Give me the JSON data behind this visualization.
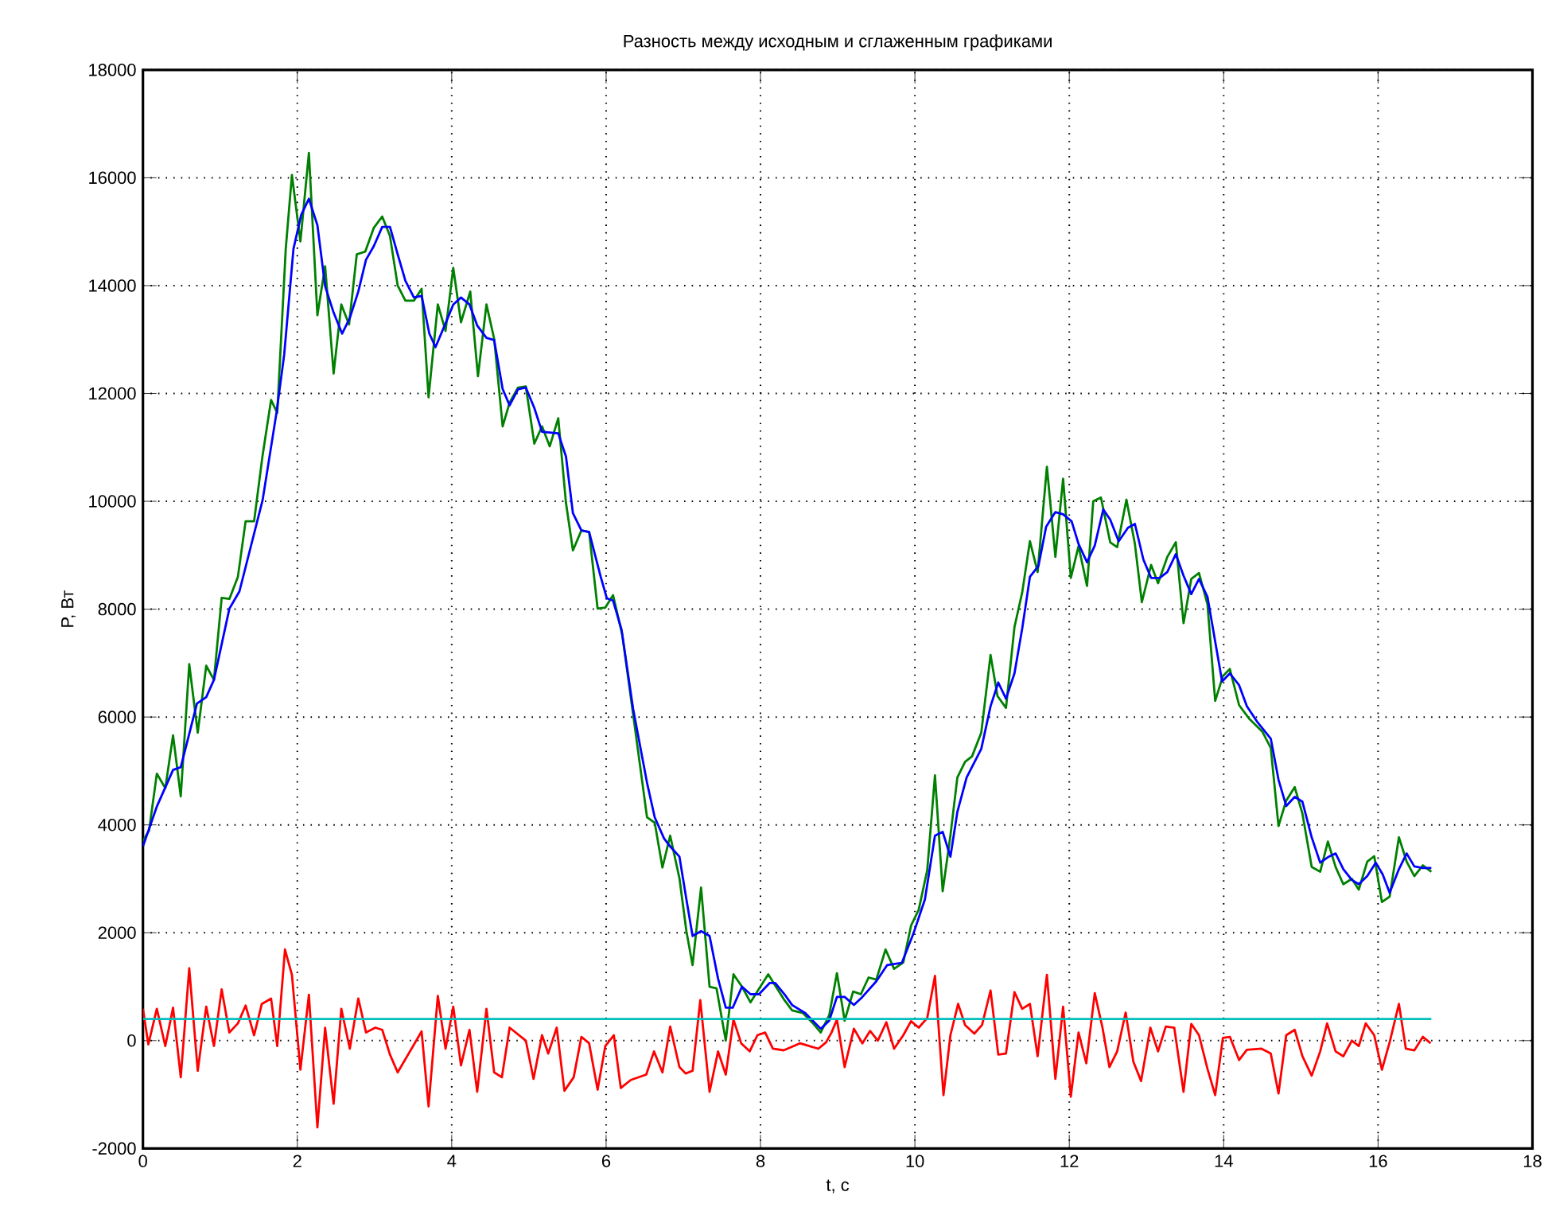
{
  "chart_data": {
    "type": "line",
    "title": "Разность между исходным и сглаженным графиками",
    "xlabel": "t, с",
    "ylabel": "P, Вт",
    "xlim": [
      0,
      18
    ],
    "ylim": [
      -2000,
      18000
    ],
    "xticks": [
      0,
      2,
      4,
      6,
      8,
      10,
      12,
      14,
      16,
      18
    ],
    "yticks": [
      -2000,
      0,
      2000,
      4000,
      6000,
      8000,
      10000,
      12000,
      14000,
      16000,
      18000
    ],
    "grid": true,
    "series": [
      {
        "color": "#008000",
        "x": [
          0,
          0.08,
          0.18,
          0.29,
          0.39,
          0.49,
          0.6,
          0.71,
          0.82,
          0.92,
          1.02,
          1.12,
          1.23,
          1.33,
          1.44,
          1.55,
          1.66,
          1.74,
          1.85,
          1.93,
          2.04,
          2.15,
          2.26,
          2.36,
          2.47,
          2.57,
          2.67,
          2.77,
          2.88,
          2.99,
          3.1,
          3.2,
          3.3,
          3.4,
          3.51,
          3.61,
          3.7,
          3.82,
          3.92,
          4.02,
          4.12,
          4.24,
          4.34,
          4.45,
          4.55,
          4.66,
          4.75,
          4.86,
          4.96,
          5.07,
          5.17,
          5.27,
          5.38,
          5.48,
          5.57,
          5.68,
          5.78,
          5.89,
          5.99,
          6.09,
          6.21,
          6.35,
          6.53,
          6.63,
          6.73,
          6.83,
          6.95,
          7.04,
          7.12,
          7.23,
          7.34,
          7.43,
          7.55,
          7.65,
          7.76,
          7.87,
          7.98,
          8.1,
          8.2,
          8.31,
          8.41,
          8.55,
          8.68,
          8.78,
          8.89,
          8.99,
          9.09,
          9.2,
          9.3,
          9.4,
          9.5,
          9.62,
          9.73,
          9.85,
          9.95,
          10.05,
          10.16,
          10.26,
          10.36,
          10.46,
          10.55,
          10.65,
          10.74,
          10.86,
          10.98,
          11.07,
          11.18,
          11.29,
          11.39,
          11.49,
          11.59,
          11.71,
          11.82,
          11.92,
          12.02,
          12.12,
          12.23,
          12.31,
          12.41,
          12.53,
          12.62,
          12.74,
          12.85,
          12.94,
          13.06,
          13.15,
          13.27,
          13.38,
          13.48,
          13.58,
          13.68,
          13.79,
          13.89,
          13.99,
          14.08,
          14.2,
          14.33,
          14.5,
          14.61,
          14.71,
          14.81,
          14.92,
          15.02,
          15.14,
          15.25,
          15.35,
          15.45,
          15.55,
          15.66,
          15.75,
          15.86,
          15.95,
          16.05,
          16.15,
          16.27,
          16.37,
          16.47,
          16.58,
          16.69
        ],
        "values": [
          3700,
          3900,
          4950,
          4680,
          5660,
          4530,
          6980,
          5710,
          6950,
          6690,
          8210,
          8190,
          8600,
          9630,
          9630,
          10850,
          11880,
          11640,
          14680,
          16050,
          14820,
          16460,
          13450,
          14360,
          12370,
          13650,
          13280,
          14580,
          14630,
          15070,
          15280,
          14920,
          14000,
          13720,
          13720,
          13940,
          11930,
          13650,
          13160,
          14330,
          13320,
          13890,
          12320,
          13650,
          13010,
          11390,
          11830,
          12110,
          12130,
          11070,
          11390,
          11020,
          11540,
          9970,
          9090,
          9460,
          9430,
          8010,
          8030,
          8260,
          7520,
          6050,
          4140,
          4040,
          3210,
          3800,
          3010,
          2030,
          1400,
          2840,
          1000,
          970,
          0,
          1230,
          1000,
          710,
          960,
          1230,
          1000,
          750,
          560,
          510,
          320,
          150,
          470,
          1250,
          370,
          910,
          860,
          1170,
          1130,
          1690,
          1330,
          1450,
          2130,
          2430,
          3160,
          4920,
          2770,
          3800,
          4880,
          5170,
          5270,
          5710,
          7150,
          6390,
          6170,
          7670,
          8310,
          9260,
          8690,
          10640,
          8970,
          10420,
          8580,
          9170,
          8430,
          10000,
          10070,
          9240,
          9150,
          10030,
          9210,
          8130,
          8820,
          8480,
          8970,
          9240,
          7740,
          8560,
          8670,
          8090,
          6300,
          6760,
          6890,
          6220,
          5970,
          5730,
          5430,
          3980,
          4450,
          4700,
          4210,
          3220,
          3130,
          3690,
          3220,
          2900,
          3000,
          2800,
          3320,
          3420,
          2570,
          2670,
          3770,
          3320,
          3050,
          3250,
          3130
        ]
      },
      {
        "color": "#0000ff",
        "x": [
          0,
          0.18,
          0.39,
          0.49,
          0.7,
          0.82,
          0.92,
          1.12,
          1.25,
          1.55,
          1.73,
          1.83,
          1.95,
          2.05,
          2.15,
          2.26,
          2.36,
          2.47,
          2.58,
          2.68,
          2.79,
          2.89,
          2.99,
          3.1,
          3.2,
          3.3,
          3.4,
          3.51,
          3.61,
          3.71,
          3.79,
          3.92,
          4.02,
          4.12,
          4.23,
          4.33,
          4.45,
          4.55,
          4.66,
          4.75,
          4.86,
          4.96,
          5.07,
          5.17,
          5.38,
          5.48,
          5.57,
          5.68,
          5.78,
          5.93,
          6.01,
          6.09,
          6.2,
          6.35,
          6.53,
          6.63,
          6.75,
          6.83,
          6.95,
          7.04,
          7.12,
          7.23,
          7.34,
          7.45,
          7.55,
          7.64,
          7.76,
          7.87,
          7.98,
          8.12,
          8.19,
          8.31,
          8.41,
          8.58,
          8.78,
          8.89,
          8.99,
          9.09,
          9.21,
          9.32,
          9.5,
          9.64,
          9.83,
          9.98,
          10.13,
          10.26,
          10.36,
          10.46,
          10.55,
          10.67,
          10.86,
          10.98,
          11.08,
          11.18,
          11.29,
          11.39,
          11.49,
          11.6,
          11.7,
          11.82,
          11.92,
          12.03,
          12.12,
          12.23,
          12.33,
          12.44,
          12.53,
          12.64,
          12.76,
          12.85,
          12.96,
          13.06,
          13.17,
          13.27,
          13.38,
          13.48,
          13.58,
          13.68,
          13.79,
          13.89,
          13.98,
          14.08,
          14.2,
          14.3,
          14.44,
          14.61,
          14.71,
          14.81,
          14.92,
          15.02,
          15.14,
          15.25,
          15.35,
          15.45,
          15.55,
          15.66,
          15.75,
          15.86,
          15.97,
          16.06,
          16.15,
          16.27,
          16.37,
          16.47,
          16.58,
          16.69
        ],
        "values": [
          3600,
          4340,
          5020,
          5070,
          6250,
          6370,
          6690,
          8010,
          8330,
          10020,
          11640,
          12720,
          14680,
          15310,
          15610,
          15120,
          13990,
          13500,
          13110,
          13400,
          13890,
          14480,
          14730,
          15090,
          15090,
          14580,
          14090,
          13780,
          13810,
          13110,
          12860,
          13300,
          13650,
          13780,
          13650,
          13260,
          13030,
          12990,
          12080,
          11780,
          12080,
          12110,
          11730,
          11290,
          11260,
          10830,
          9780,
          9460,
          9430,
          8600,
          8200,
          8160,
          7620,
          6150,
          4780,
          4140,
          3750,
          3600,
          3410,
          2620,
          1940,
          2030,
          1940,
          1150,
          610,
          610,
          1000,
          860,
          860,
          1070,
          1070,
          860,
          660,
          510,
          220,
          370,
          810,
          810,
          660,
          810,
          1100,
          1400,
          1440,
          1980,
          2620,
          3800,
          3870,
          3410,
          4240,
          4880,
          5410,
          6200,
          6640,
          6340,
          6810,
          7640,
          8600,
          8800,
          9530,
          9800,
          9760,
          9630,
          9210,
          8870,
          9180,
          9850,
          9660,
          9260,
          9510,
          9580,
          8920,
          8580,
          8580,
          8690,
          9020,
          8620,
          8280,
          8560,
          8230,
          7400,
          6660,
          6810,
          6590,
          6200,
          5900,
          5600,
          4840,
          4350,
          4520,
          4430,
          3770,
          3300,
          3400,
          3470,
          3180,
          2980,
          2900,
          3050,
          3300,
          3080,
          2740,
          3180,
          3470,
          3230,
          3200,
          3200
        ]
      },
      {
        "color": "#ff0000",
        "x": [
          0,
          0.07,
          0.18,
          0.29,
          0.39,
          0.49,
          0.6,
          0.71,
          0.82,
          0.92,
          1.02,
          1.12,
          1.23,
          1.33,
          1.44,
          1.54,
          1.66,
          1.74,
          1.84,
          1.93,
          2.04,
          2.15,
          2.26,
          2.36,
          2.47,
          2.57,
          2.68,
          2.79,
          2.89,
          3.01,
          3.1,
          3.2,
          3.3,
          3.61,
          3.7,
          3.82,
          3.92,
          4.02,
          4.12,
          4.23,
          4.33,
          4.45,
          4.55,
          4.65,
          4.75,
          4.96,
          5.06,
          5.17,
          5.25,
          5.36,
          5.46,
          5.58,
          5.68,
          5.78,
          5.89,
          5.99,
          6.1,
          6.19,
          6.32,
          6.52,
          6.62,
          6.73,
          6.83,
          6.95,
          7.03,
          7.12,
          7.22,
          7.34,
          7.45,
          7.55,
          7.65,
          7.75,
          7.86,
          7.96,
          8.06,
          8.16,
          8.3,
          8.51,
          8.75,
          8.85,
          8.92,
          8.99,
          9.09,
          9.21,
          9.32,
          9.42,
          9.52,
          9.63,
          9.73,
          9.85,
          9.95,
          10.05,
          10.16,
          10.26,
          10.37,
          10.46,
          10.56,
          10.65,
          10.77,
          10.87,
          10.98,
          11.08,
          11.18,
          11.29,
          11.39,
          11.49,
          11.59,
          11.71,
          11.82,
          11.92,
          12.02,
          12.12,
          12.22,
          12.33,
          12.43,
          12.52,
          12.62,
          12.73,
          12.83,
          12.93,
          13.05,
          13.15,
          13.25,
          13.36,
          13.48,
          13.58,
          13.68,
          13.79,
          13.89,
          13.99,
          14.08,
          14.2,
          14.3,
          14.49,
          14.61,
          14.71,
          14.81,
          14.92,
          15.02,
          15.14,
          15.25,
          15.34,
          15.45,
          15.55,
          15.66,
          15.75,
          15.84,
          15.95,
          16.05,
          16.15,
          16.27,
          16.36,
          16.47,
          16.58,
          16.68
        ],
        "values": [
          590,
          -70,
          590,
          -100,
          610,
          -680,
          1340,
          -560,
          630,
          -100,
          950,
          150,
          320,
          650,
          100,
          680,
          780,
          -100,
          1690,
          1220,
          -540,
          850,
          -1610,
          240,
          -1170,
          590,
          -150,
          780,
          150,
          240,
          200,
          -260,
          -590,
          170,
          -1220,
          830,
          -150,
          630,
          -460,
          200,
          -950,
          590,
          -590,
          -680,
          240,
          0,
          -710,
          100,
          -240,
          240,
          -930,
          -680,
          70,
          -50,
          -910,
          -100,
          100,
          -880,
          -730,
          -630,
          -200,
          -590,
          260,
          -490,
          -610,
          -560,
          750,
          -950,
          -200,
          -630,
          390,
          -50,
          -200,
          100,
          150,
          -150,
          -180,
          -50,
          -150,
          -30,
          150,
          390,
          -490,
          220,
          -50,
          180,
          0,
          340,
          -150,
          100,
          360,
          240,
          420,
          1200,
          -1010,
          100,
          680,
          290,
          130,
          290,
          930,
          -260,
          -240,
          900,
          590,
          680,
          -290,
          1220,
          -710,
          630,
          -1040,
          150,
          -420,
          880,
          240,
          -490,
          -200,
          520,
          -390,
          -750,
          240,
          -200,
          260,
          240,
          -950,
          310,
          100,
          -520,
          -1010,
          50,
          70,
          -360,
          -170,
          -150,
          -240,
          -980,
          100,
          200,
          -290,
          -650,
          -200,
          320,
          -200,
          -290,
          0,
          -100,
          320,
          100,
          -540,
          -30,
          680,
          -150,
          -180,
          70,
          -50
        ]
      },
      {
        "color": "#00bfbf",
        "x": [
          0,
          16.69
        ],
        "values": [
          400,
          400
        ]
      }
    ]
  }
}
